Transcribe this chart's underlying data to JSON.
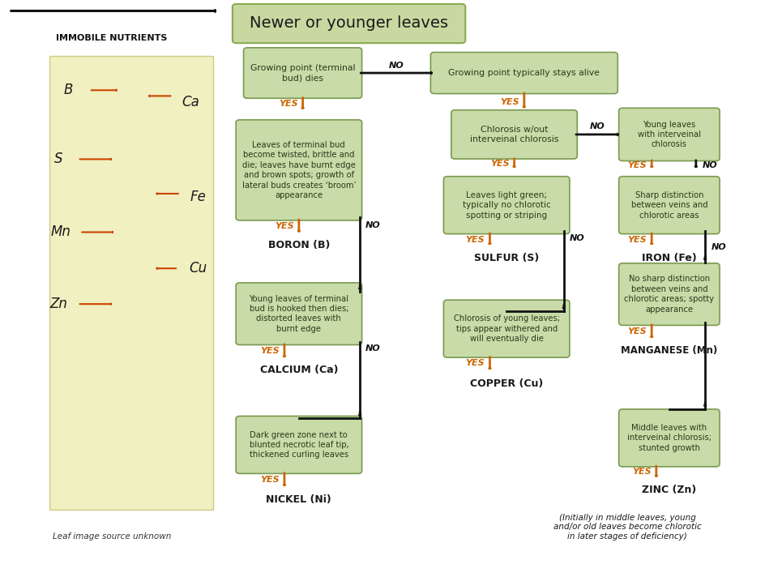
{
  "title": "Newer or younger leaves",
  "title_box_color": "#c8d8a0",
  "title_box_edge": "#8aaa50",
  "bg_color": "#ffffff",
  "box_fill": "#c8dba8",
  "box_edge": "#7a9a50",
  "yes_color": "#cc6600",
  "no_color": "#111111",
  "immobile_label": "IMMOBILE NUTRIENTS",
  "leaf_credit": "Leaf image source unknown",
  "zinc_note": "(Initially in middle leaves, young\nand/or old leaves become chlorotic\nin later stages of deficiency)"
}
